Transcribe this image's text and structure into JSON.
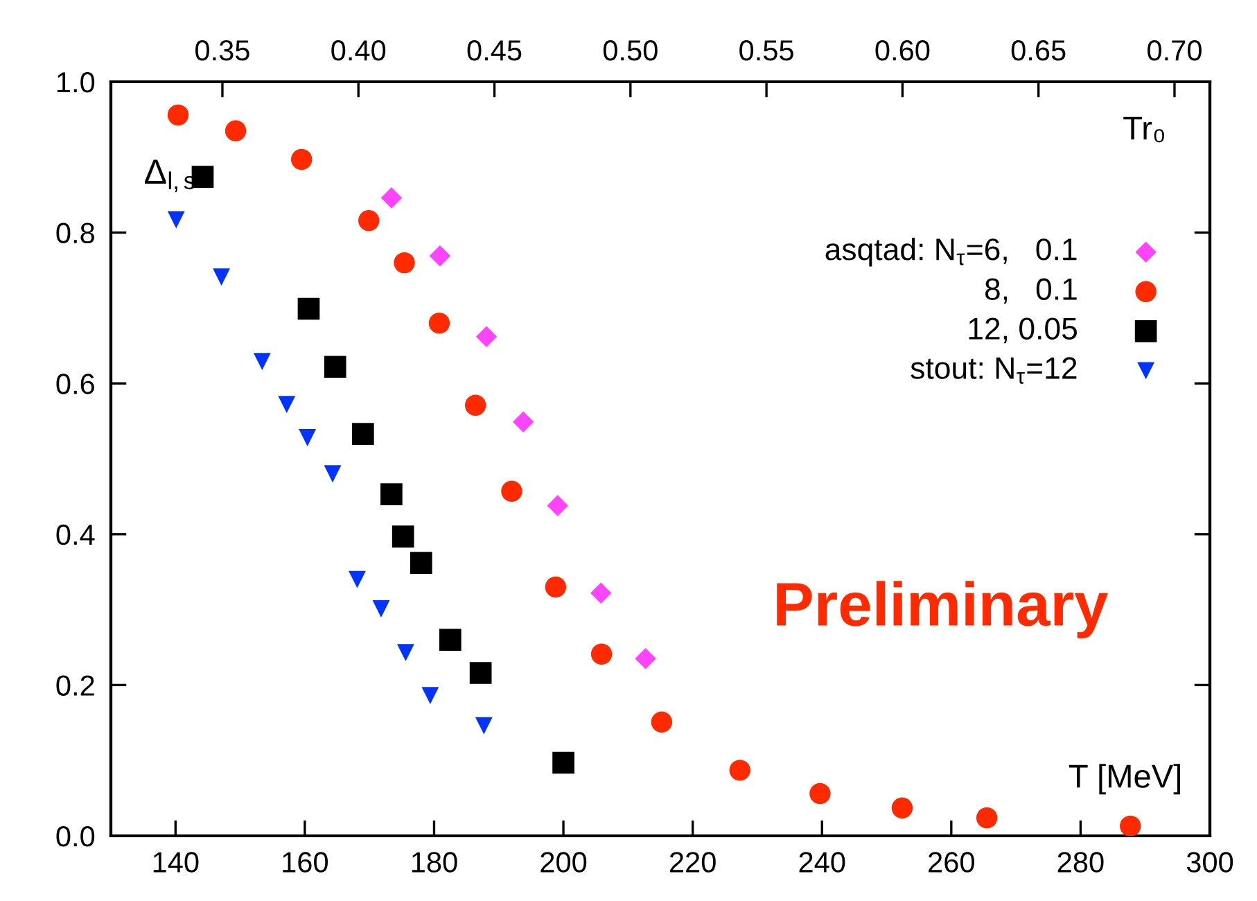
{
  "chart_data": {
    "type": "scatter",
    "xlabel": "T [MeV]",
    "ylabel": "Δ$_{l,s}$",
    "x2label": "Tr₀",
    "xlim": [
      130,
      300
    ],
    "xticks": [
      140,
      160,
      180,
      200,
      220,
      240,
      260,
      280,
      300
    ],
    "x2lim": [
      0.309,
      0.713
    ],
    "x2ticks": [
      {
        "value": 0.35,
        "label": "0.35"
      },
      {
        "value": 0.4,
        "label": "0.40"
      },
      {
        "value": 0.45,
        "label": "0.45"
      },
      {
        "value": 0.5,
        "label": "0.50"
      },
      {
        "value": 0.55,
        "label": "0.55"
      },
      {
        "value": 0.6,
        "label": "0.60"
      },
      {
        "value": 0.65,
        "label": "0.65"
      },
      {
        "value": 0.7,
        "label": "0.70"
      }
    ],
    "ylim": [
      0,
      1.0
    ],
    "yticks": [
      {
        "value": 0,
        "label": "0.0"
      },
      {
        "value": 0.2,
        "label": "0.2"
      },
      {
        "value": 0.4,
        "label": "0.4"
      },
      {
        "value": 0.6,
        "label": "0.6"
      },
      {
        "value": 0.8,
        "label": "0.8"
      },
      {
        "value": 1.0,
        "label": "1.0"
      }
    ],
    "grid": false,
    "legend": "top right",
    "annotations": [
      "Preliminary"
    ],
    "series": [
      {
        "name": "asqtad: N$_{τ}$=6,   0.1",
        "color": "#ff44ff",
        "marker": "diamond",
        "x": [
          173.4,
          180.9,
          188.1,
          193.8,
          199.1,
          205.8,
          212.7
        ],
        "values": [
          0.846,
          0.769,
          0.662,
          0.549,
          0.438,
          0.322,
          0.235
        ]
      },
      {
        "name": "8,   0.1",
        "color": "#ff2a00",
        "marker": "circle",
        "x": [
          140.4,
          149.3,
          159.5,
          169.9,
          175.4,
          180.8,
          186.4,
          192.0,
          198.8,
          205.9,
          215.2,
          227.3,
          239.7,
          252.4,
          265.5,
          287.7
        ],
        "values": [
          0.956,
          0.935,
          0.897,
          0.816,
          0.76,
          0.68,
          0.571,
          0.457,
          0.33,
          0.241,
          0.151,
          0.087,
          0.056,
          0.037,
          0.024,
          0.013
        ]
      },
      {
        "name": "12, 0.05",
        "color": "#000000",
        "marker": "square",
        "x": [
          144.2,
          160.6,
          164.7,
          169.0,
          173.4,
          175.2,
          178.0,
          182.5,
          187.2,
          200.0
        ],
        "values": [
          0.874,
          0.699,
          0.622,
          0.533,
          0.453,
          0.397,
          0.362,
          0.26,
          0.216,
          0.097
        ]
      },
      {
        "name": "stout: N$_{τ}$=12",
        "color": "#0033ff",
        "marker": "triangle",
        "x": [
          140.1,
          147.1,
          153.4,
          157.2,
          160.4,
          164.3,
          168.1,
          171.8,
          175.6,
          179.4,
          187.7
        ],
        "values": [
          0.817,
          0.741,
          0.629,
          0.572,
          0.528,
          0.48,
          0.34,
          0.301,
          0.243,
          0.186,
          0.146
        ]
      }
    ]
  }
}
